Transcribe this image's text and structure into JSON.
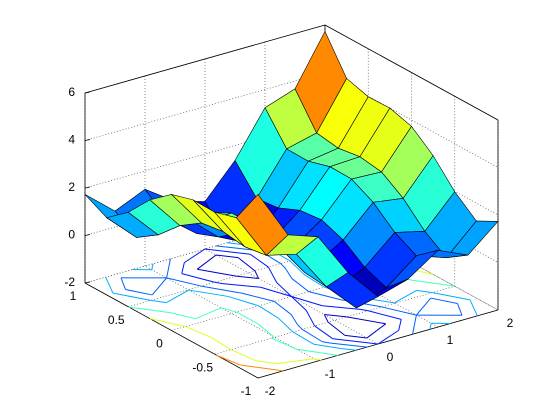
{
  "chart_data": {
    "type": "surface",
    "x": [
      -2,
      -1.5,
      -1,
      -0.5,
      0,
      0.5,
      1,
      1.5,
      2
    ],
    "y": [
      -1,
      -0.75,
      -0.5,
      -0.25,
      0,
      0.25,
      0.5,
      0.75,
      1
    ],
    "z": [
      [
        5.73,
        3.67,
        3.23,
        1.37,
        0,
        0.37,
        1.23,
        0.67,
        1.73
      ],
      [
        4.25,
        2.31,
        2.0,
        0.27,
        -0.98,
        -0.49,
        0.5,
        0.06,
        1.25
      ],
      [
        3.98,
        2.17,
        1.98,
        0.37,
        -0.75,
        -0.13,
        0.98,
        0.67,
        1.98
      ],
      [
        4.0,
        2.31,
        2.25,
        0.77,
        -0.23,
        0.52,
        1.75,
        1.56,
        3.0
      ],
      [
        3.73,
        2.17,
        2.23,
        0.87,
        0,
        0.87,
        2.23,
        2.17,
        3.73
      ],
      [
        3.0,
        1.56,
        1.75,
        0.52,
        -0.23,
        0.77,
        2.25,
        2.31,
        4.0
      ],
      [
        1.98,
        0.67,
        0.98,
        -0.13,
        -0.75,
        0.37,
        1.98,
        2.17,
        3.98
      ],
      [
        1.25,
        0.06,
        0.5,
        -0.49,
        -0.98,
        0.27,
        2.0,
        2.31,
        4.25
      ],
      [
        1.73,
        0.67,
        1.23,
        0.37,
        0,
        1.37,
        3.23,
        3.67,
        5.73
      ]
    ],
    "xlim": [
      -2,
      2
    ],
    "ylim": [
      -1,
      1
    ],
    "zlim": [
      -2,
      6
    ],
    "xticks": [
      -2,
      -1,
      0,
      1,
      2
    ],
    "yticks": [
      -1,
      -0.5,
      0,
      0.5,
      1
    ],
    "zticks": [
      -2,
      0,
      2,
      4,
      6
    ],
    "contour_levels": [
      -0.5,
      0,
      0.5,
      1,
      2,
      3,
      4
    ],
    "colormap": "jet",
    "grid": true
  }
}
